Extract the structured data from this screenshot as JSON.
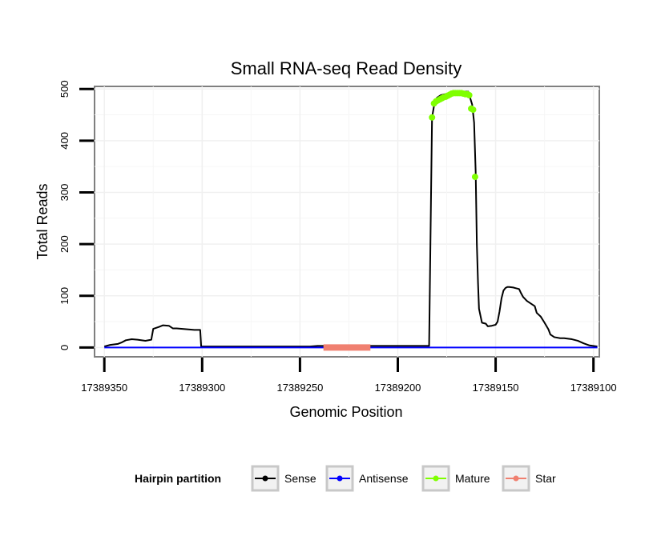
{
  "chart_data": {
    "type": "line",
    "title": "Small RNA-seq Read Density",
    "xlabel": "Genomic Position",
    "ylabel": "Total Reads",
    "xlim": [
      17389355,
      17389097
    ],
    "ylim": [
      -18,
      505
    ],
    "x_reversed": true,
    "x_ticks": [
      17389350,
      17389300,
      17389250,
      17389200,
      17389150,
      17389100
    ],
    "x_tick_labels": [
      "17389350",
      "17389300",
      "17389250",
      "17389200",
      "17389150",
      "17389100"
    ],
    "y_ticks": [
      0,
      100,
      200,
      300,
      400,
      500
    ],
    "y_tick_labels": [
      "0",
      "100",
      "200",
      "300",
      "400",
      "500"
    ],
    "grid": true,
    "legend": {
      "title": "Hairpin partition",
      "position": "bottom",
      "entries": [
        {
          "label": "Sense",
          "color": "#000000"
        },
        {
          "label": "Antisense",
          "color": "#0000FF"
        },
        {
          "label": "Mature",
          "color": "#7FFF00"
        },
        {
          "label": "Star",
          "color": "#F08070"
        }
      ]
    },
    "series": [
      {
        "name": "Sense",
        "color": "#000000",
        "style": "line",
        "x": [
          17389350,
          17389347,
          17389343,
          17389341,
          17389339,
          17389336,
          17389333,
          17389329,
          17389326,
          17389325,
          17389322,
          17389320,
          17389317,
          17389315,
          17389313,
          17389310,
          17389307,
          17389304,
          17389301,
          17389300.5,
          17389295,
          17389245,
          17389241,
          17389200,
          17389184,
          17389182.5,
          17389181,
          17389180,
          17389178,
          17389170,
          17389164,
          17389162,
          17389161,
          17389160.2,
          17389159.6,
          17389159,
          17389158.5,
          17389157,
          17389155,
          17389154,
          17389152,
          17389151,
          17389150,
          17389149,
          17389148,
          17389147,
          17389146,
          17389145,
          17389144,
          17389143,
          17389141,
          17389140,
          17389138,
          17389137,
          17389136,
          17389134,
          17389132,
          17389130,
          17389129,
          17389127,
          17389125,
          17389123,
          17389122,
          17389120,
          17389117,
          17389115,
          17389113,
          17389111,
          17389108,
          17389105,
          17389102,
          17389098
        ],
        "y": [
          2,
          5,
          7,
          10,
          14,
          16,
          15,
          13,
          15,
          36,
          40,
          43,
          42,
          37,
          37,
          36,
          35,
          34,
          34,
          2,
          2,
          2,
          3,
          3,
          3,
          445,
          478,
          483,
          488,
          495,
          495,
          470,
          435,
          340,
          200,
          125,
          75,
          48,
          46,
          41,
          42,
          43,
          44,
          50,
          70,
          95,
          110,
          115,
          117,
          117,
          116,
          115,
          113,
          105,
          98,
          90,
          85,
          80,
          67,
          60,
          48,
          35,
          25,
          20,
          18,
          18,
          17,
          16,
          13,
          8,
          4,
          2
        ]
      },
      {
        "name": "Antisense",
        "color": "#0000FF",
        "style": "line",
        "x": [
          17389350,
          17389098
        ],
        "y": [
          0,
          0
        ]
      },
      {
        "name": "Mature",
        "color": "#7FFF00",
        "style": "points",
        "x": [
          17389182.5,
          17389181.5,
          17389180.5,
          17389179.5,
          17389178.5,
          17389177.5,
          17389176.5,
          17389175.5,
          17389174.5,
          17389173.5,
          17389172.5,
          17389171.5,
          17389170.5,
          17389169.5,
          17389168.5,
          17389167.5,
          17389166.5,
          17389165.5,
          17389164.5,
          17389163.5,
          17389162.5,
          17389161.5,
          17389160.5
        ],
        "y": [
          445,
          472,
          476,
          478,
          480,
          482,
          484,
          485,
          487,
          489,
          491,
          492,
          492,
          492,
          492,
          492,
          491,
          490,
          490,
          488,
          462,
          460,
          330
        ]
      },
      {
        "name": "Star",
        "color": "#F08070",
        "style": "thick-line",
        "x": [
          17389238,
          17389214
        ],
        "y": [
          0,
          0
        ]
      }
    ]
  }
}
